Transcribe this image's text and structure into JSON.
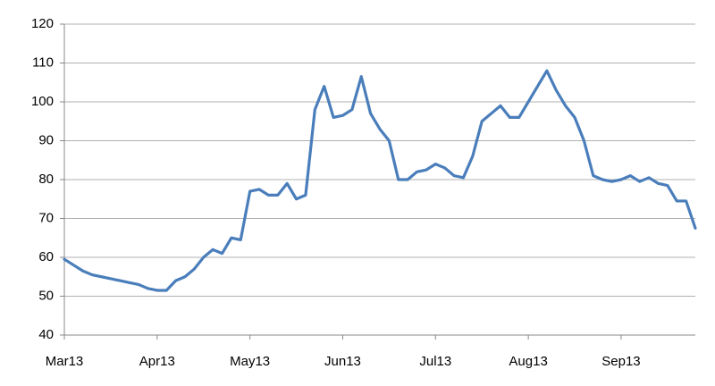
{
  "chart_data": {
    "type": "line",
    "categories": [
      "Mar13",
      null,
      null,
      null,
      null,
      null,
      null,
      null,
      null,
      null,
      "Apr13",
      null,
      null,
      null,
      null,
      null,
      null,
      null,
      null,
      null,
      "May13",
      null,
      null,
      null,
      null,
      null,
      null,
      null,
      null,
      null,
      "Jun13",
      null,
      null,
      null,
      null,
      null,
      null,
      null,
      null,
      null,
      "Jul13",
      null,
      null,
      null,
      null,
      null,
      null,
      null,
      null,
      null,
      "Aug13",
      null,
      null,
      null,
      null,
      null,
      null,
      null,
      null,
      null,
      "Sep13",
      null,
      null,
      null,
      null,
      null,
      null,
      null,
      null
    ],
    "series": [
      {
        "color": "#4a7ebb",
        "values": [
          59.5,
          58,
          56.5,
          55.5,
          55,
          54.5,
          54,
          53.5,
          53,
          52,
          51.5,
          51.5,
          54,
          55,
          57,
          60,
          62,
          61,
          65,
          64.5,
          77,
          77.5,
          76,
          76,
          79,
          75,
          76,
          98,
          104,
          96,
          96.5,
          98,
          106.5,
          97,
          93,
          90,
          80,
          80,
          82,
          82.5,
          84,
          83,
          81,
          80.5,
          86,
          95,
          97,
          99,
          96,
          96,
          100,
          104,
          108,
          103,
          99,
          96,
          90,
          81,
          80,
          79.5,
          80,
          81,
          79.5,
          80.5,
          79,
          78.5,
          74.5,
          74.5,
          67.5
        ]
      }
    ],
    "ylim": [
      40,
      120
    ],
    "yticks": [
      40,
      50,
      60,
      70,
      80,
      90,
      100,
      110,
      120
    ],
    "grid": true
  }
}
